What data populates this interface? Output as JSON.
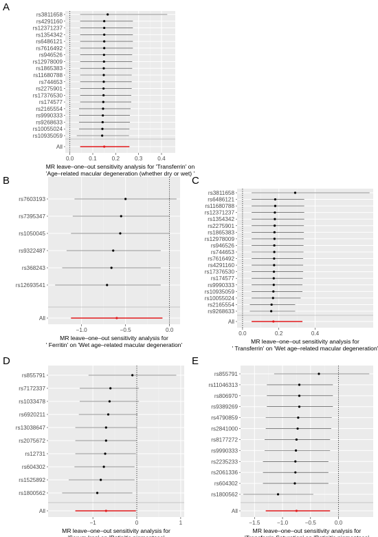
{
  "chart_data": [
    {
      "type": "forest",
      "panel": "A",
      "xlabel": "MR leave–one–out sensitivity analysis for 'Transferrin' on\n'Age–related macular degeneration (whether dry or wet) '",
      "xlim": [
        -0.02,
        0.46
      ],
      "xticks": [
        0.0,
        0.1,
        0.2,
        0.3,
        0.4
      ],
      "xtick_labels": [
        "0.0",
        "0.1",
        "0.2",
        "0.3",
        "0.4"
      ],
      "rows": [
        {
          "label": "rs3811658",
          "est": 0.165,
          "lo": 0.045,
          "hi": 0.425
        },
        {
          "label": "rs4291160",
          "est": 0.15,
          "lo": 0.045,
          "hi": 0.275
        },
        {
          "label": "rs12371237",
          "est": 0.15,
          "lo": 0.045,
          "hi": 0.275
        },
        {
          "label": "rs1354342",
          "est": 0.15,
          "lo": 0.045,
          "hi": 0.275
        },
        {
          "label": "rs6486121",
          "est": 0.15,
          "lo": 0.045,
          "hi": 0.275
        },
        {
          "label": "rs7616492",
          "est": 0.15,
          "lo": 0.045,
          "hi": 0.275
        },
        {
          "label": "rs946526",
          "est": 0.149,
          "lo": 0.045,
          "hi": 0.272
        },
        {
          "label": "rs12978009",
          "est": 0.149,
          "lo": 0.045,
          "hi": 0.272
        },
        {
          "label": "rs1865383",
          "est": 0.148,
          "lo": 0.045,
          "hi": 0.272
        },
        {
          "label": "rs11680788",
          "est": 0.148,
          "lo": 0.045,
          "hi": 0.27
        },
        {
          "label": "rs744653",
          "est": 0.148,
          "lo": 0.045,
          "hi": 0.27
        },
        {
          "label": "rs2275901",
          "est": 0.147,
          "lo": 0.045,
          "hi": 0.27
        },
        {
          "label": "rs17376530",
          "est": 0.147,
          "lo": 0.045,
          "hi": 0.268
        },
        {
          "label": "rs174577",
          "est": 0.146,
          "lo": 0.045,
          "hi": 0.268
        },
        {
          "label": "rs2165554",
          "est": 0.145,
          "lo": 0.04,
          "hi": 0.265
        },
        {
          "label": "rs9990333",
          "est": 0.144,
          "lo": 0.04,
          "hi": 0.262
        },
        {
          "label": "rs9268633",
          "est": 0.143,
          "lo": 0.04,
          "hi": 0.262
        },
        {
          "label": "rs10055024",
          "est": 0.142,
          "lo": 0.04,
          "hi": 0.26
        },
        {
          "label": "rs10935059",
          "est": 0.141,
          "lo": 0.03,
          "hi": 0.258
        }
      ],
      "overall": {
        "label": "All",
        "est": 0.15,
        "lo": 0.045,
        "hi": 0.26
      }
    },
    {
      "type": "forest",
      "panel": "B",
      "xlabel": "MR leave–one–out sensitivity analysis for\n' Ferritin' on 'Wet age–related macular degeneration'",
      "xlim": [
        -1.38,
        0.12
      ],
      "xticks": [
        -1.0,
        -0.5,
        0.0
      ],
      "xtick_labels": [
        "−1.0",
        "−0.5",
        "0.0"
      ],
      "rows": [
        {
          "label": "rs7603193",
          "est": -0.5,
          "lo": -1.08,
          "hi": 0.08
        },
        {
          "label": "rs7395347",
          "est": -0.55,
          "lo": -1.1,
          "hi": 0.0
        },
        {
          "label": "rs1050045",
          "est": -0.56,
          "lo": -1.12,
          "hi": 0.0
        },
        {
          "label": "rs9322487",
          "est": -0.64,
          "lo": -1.17,
          "hi": -0.1
        },
        {
          "label": "rs368243",
          "est": -0.66,
          "lo": -1.22,
          "hi": -0.1
        },
        {
          "label": "rs12693541",
          "est": -0.71,
          "lo": -1.3,
          "hi": -0.1
        }
      ],
      "overall": {
        "label": "All",
        "est": -0.6,
        "lo": -1.12,
        "hi": -0.08
      }
    },
    {
      "type": "forest",
      "panel": "C",
      "xlabel": "MR leave–one–out sensitivity analysis for\n' Transferrin' on 'Wet age–related macular degeneration'",
      "xlim": [
        -0.03,
        0.72
      ],
      "xticks": [
        0.0,
        0.2,
        0.4
      ],
      "xtick_labels": [
        "0.0",
        "0.2",
        "0.4"
      ],
      "rows": [
        {
          "label": "rs3811658",
          "est": 0.29,
          "lo": 0.05,
          "hi": 0.7
        },
        {
          "label": "rs6486121",
          "est": 0.18,
          "lo": 0.05,
          "hi": 0.34
        },
        {
          "label": "rs11680788",
          "est": 0.18,
          "lo": 0.05,
          "hi": 0.34
        },
        {
          "label": "rs12371237",
          "est": 0.178,
          "lo": 0.05,
          "hi": 0.34
        },
        {
          "label": "rs1354342",
          "est": 0.178,
          "lo": 0.05,
          "hi": 0.34
        },
        {
          "label": "rs2275901",
          "est": 0.177,
          "lo": 0.05,
          "hi": 0.338
        },
        {
          "label": "rs1865383",
          "est": 0.176,
          "lo": 0.05,
          "hi": 0.338
        },
        {
          "label": "rs12978009",
          "est": 0.176,
          "lo": 0.05,
          "hi": 0.338
        },
        {
          "label": "rs946526",
          "est": 0.175,
          "lo": 0.05,
          "hi": 0.336
        },
        {
          "label": "rs744653",
          "est": 0.175,
          "lo": 0.05,
          "hi": 0.336
        },
        {
          "label": "rs7616492",
          "est": 0.174,
          "lo": 0.05,
          "hi": 0.334
        },
        {
          "label": "rs4291160",
          "est": 0.174,
          "lo": 0.05,
          "hi": 0.334
        },
        {
          "label": "rs17376530",
          "est": 0.173,
          "lo": 0.05,
          "hi": 0.334
        },
        {
          "label": "rs174577",
          "est": 0.172,
          "lo": 0.05,
          "hi": 0.332
        },
        {
          "label": "rs9990333",
          "est": 0.172,
          "lo": 0.05,
          "hi": 0.33
        },
        {
          "label": "rs10935059",
          "est": 0.17,
          "lo": 0.05,
          "hi": 0.33
        },
        {
          "label": "rs10055024",
          "est": 0.168,
          "lo": 0.05,
          "hi": 0.32
        },
        {
          "label": "rs2165554",
          "est": 0.16,
          "lo": 0.04,
          "hi": 0.29
        },
        {
          "label": "rs9268633",
          "est": 0.158,
          "lo": 0.04,
          "hi": 0.29
        }
      ],
      "overall": {
        "label": "All",
        "est": 0.17,
        "lo": 0.05,
        "hi": 0.33
      }
    },
    {
      "type": "forest",
      "panel": "D",
      "xlabel": "MR leave–one–out sensitivity analysis for\n'Serum Iron' on 'Retinitis pigmentosa'",
      "xlim": [
        -2.02,
        1.08
      ],
      "xticks": [
        -1,
        0,
        1
      ],
      "xtick_labels": [
        "−1",
        "0",
        "1"
      ],
      "rows": [
        {
          "label": "rs855791",
          "est": -0.1,
          "lo": -1.1,
          "hi": 0.9
        },
        {
          "label": "rs7172337",
          "est": -0.6,
          "lo": -1.3,
          "hi": 0.05
        },
        {
          "label": "rs1033478",
          "est": -0.62,
          "lo": -1.3,
          "hi": 0.05
        },
        {
          "label": "rs6920211",
          "est": -0.65,
          "lo": -1.32,
          "hi": 0.02
        },
        {
          "label": "rs13038647",
          "est": -0.7,
          "lo": -1.4,
          "hi": 0.0
        },
        {
          "label": "rs2075672",
          "est": -0.7,
          "lo": -1.4,
          "hi": 0.0
        },
        {
          "label": "rs12731",
          "est": -0.72,
          "lo": -1.4,
          "hi": -0.02
        },
        {
          "label": "rs604302",
          "est": -0.75,
          "lo": -1.42,
          "hi": -0.05
        },
        {
          "label": "rs1525892",
          "est": -0.82,
          "lo": -1.55,
          "hi": -0.05
        },
        {
          "label": "rs1800562",
          "est": -0.9,
          "lo": -1.7,
          "hi": -0.1
        }
      ],
      "overall": {
        "label": "All",
        "est": -0.7,
        "lo": -1.4,
        "hi": -0.02
      }
    },
    {
      "type": "forest",
      "panel": "E",
      "xlabel": "MR leave–one–out sensitivity analysis for\n'Transferrin Saturation' on 'Retinitis pigmentosa'",
      "xlim": [
        -1.75,
        0.62
      ],
      "xticks": [
        -1.5,
        -1.0,
        -0.5,
        0.0
      ],
      "xtick_labels": [
        "−1.5",
        "−1.0",
        "−0.5",
        "0.0"
      ],
      "rows": [
        {
          "label": "rs855791",
          "est": -0.35,
          "lo": -1.15,
          "hi": 0.55
        },
        {
          "label": "rs11046313",
          "est": -0.7,
          "lo": -1.28,
          "hi": -0.1
        },
        {
          "label": "rs806970",
          "est": -0.7,
          "lo": -1.28,
          "hi": -0.1
        },
        {
          "label": "rs9389269",
          "est": -0.7,
          "lo": -1.28,
          "hi": -0.1
        },
        {
          "label": "rs4790859",
          "est": -0.72,
          "lo": -1.3,
          "hi": -0.12
        },
        {
          "label": "rs2841000",
          "est": -0.73,
          "lo": -1.3,
          "hi": -0.13
        },
        {
          "label": "rs8177272",
          "est": -0.75,
          "lo": -1.32,
          "hi": -0.15
        },
        {
          "label": "rs9990333",
          "est": -0.76,
          "lo": -1.32,
          "hi": -0.15
        },
        {
          "label": "rs2235233",
          "est": -0.77,
          "lo": -1.35,
          "hi": -0.18
        },
        {
          "label": "rs2061336",
          "est": -0.77,
          "lo": -1.35,
          "hi": -0.18
        },
        {
          "label": "rs604302",
          "est": -0.78,
          "lo": -1.35,
          "hi": -0.18
        },
        {
          "label": "rs1800562",
          "est": -1.08,
          "lo": -1.7,
          "hi": -0.45
        }
      ],
      "overall": {
        "label": "All",
        "est": -0.75,
        "lo": -1.3,
        "hi": -0.15
      }
    }
  ]
}
